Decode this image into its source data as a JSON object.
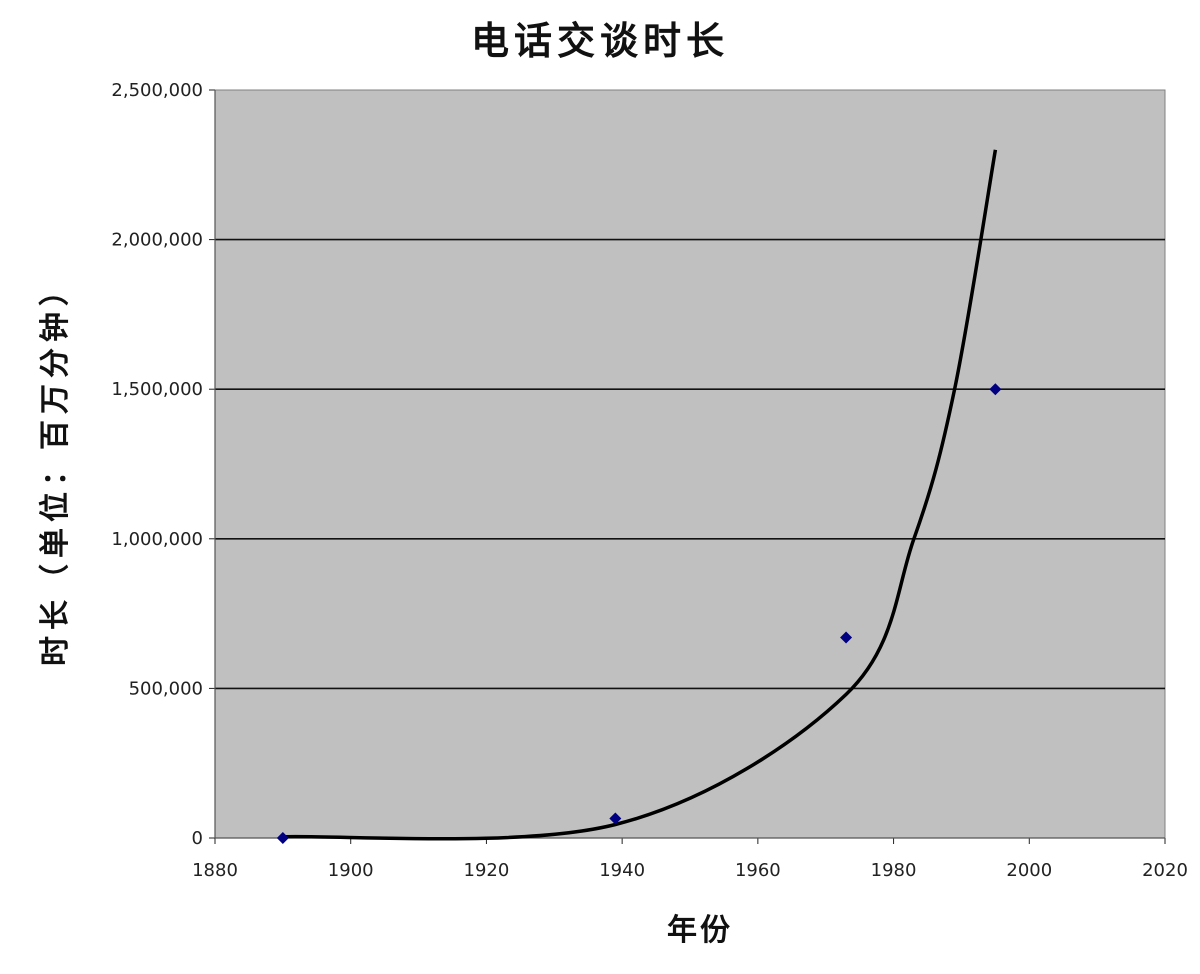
{
  "chart_data": {
    "type": "scatter",
    "title": "电话交谈时长",
    "xlabel": "年份",
    "ylabel": "时长（单位：百万分钟）",
    "xlim": [
      1880,
      2020
    ],
    "ylim": [
      0,
      2500000
    ],
    "x_ticks": [
      "1880",
      "1900",
      "1920",
      "1940",
      "1960",
      "1980",
      "2000",
      "2020"
    ],
    "y_ticks": [
      "0",
      "500,000",
      "1,000,000",
      "1,500,000",
      "2,000,000",
      "2,500,000"
    ],
    "grid": true,
    "plot_background": "#c0c0c0",
    "series": [
      {
        "kind": "points",
        "color": "#000080",
        "x": [
          1890,
          1939,
          1973,
          1995
        ],
        "y": [
          0,
          65000,
          670000,
          1500000
        ]
      },
      {
        "kind": "trendline",
        "color": "#000000",
        "x_range": [
          1890,
          1995
        ],
        "points": [
          [
            1890,
            4000
          ],
          [
            1939,
            45000
          ],
          [
            1973,
            480000
          ],
          [
            1983,
            1000000
          ],
          [
            1989,
            1500000
          ],
          [
            1995,
            2300000
          ]
        ]
      }
    ]
  }
}
